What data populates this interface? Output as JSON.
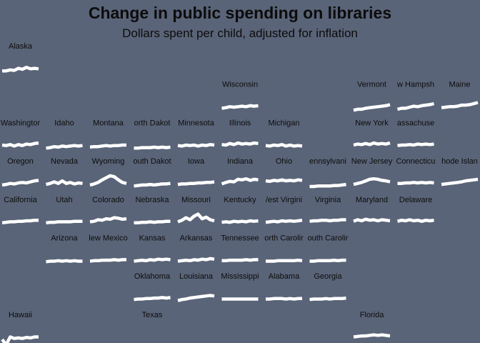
{
  "chart_data": {
    "type": "line",
    "layout": "small-multiples state grid map (sparkline per state)",
    "title": "Change in public spending on libraries",
    "subtitle": "Dollars spent per child, adjusted for inflation",
    "line_color": "#ffffff",
    "background_color": "#5a6478",
    "ylim": [
      0,
      1
    ],
    "states": [
      {
        "name": "Alaska",
        "label": "Alaska",
        "row": 0,
        "col": 0,
        "values": [
          0.3,
          0.3,
          0.34,
          0.32,
          0.4,
          0.36,
          0.44,
          0.38,
          0.4,
          0.38
        ]
      },
      {
        "name": "Wisconsin",
        "label": "Wisconsin",
        "row": 1,
        "col": 5,
        "values": [
          0.34,
          0.36,
          0.4,
          0.38,
          0.4,
          0.42,
          0.4,
          0.44,
          0.42,
          0.44
        ]
      },
      {
        "name": "Vermont",
        "label": "Vermont",
        "row": 1,
        "col": 8,
        "values": [
          0.26,
          0.3,
          0.3,
          0.34,
          0.36,
          0.38,
          0.4,
          0.42,
          0.44,
          0.48
        ]
      },
      {
        "name": "New Hampshire",
        "label": "w Hampsh",
        "row": 1,
        "col": 9,
        "values": [
          0.3,
          0.34,
          0.34,
          0.38,
          0.42,
          0.4,
          0.44,
          0.46,
          0.48,
          0.52
        ]
      },
      {
        "name": "Maine",
        "label": "Maine",
        "row": 1,
        "col": 10,
        "values": [
          0.36,
          0.38,
          0.4,
          0.4,
          0.42,
          0.46,
          0.46,
          0.48,
          0.52,
          0.56
        ]
      },
      {
        "name": "Washington",
        "label": "Washingtor",
        "row": 2,
        "col": 0,
        "values": [
          0.4,
          0.38,
          0.42,
          0.36,
          0.42,
          0.38,
          0.44,
          0.42,
          0.46,
          0.48
        ]
      },
      {
        "name": "Idaho",
        "label": "Idaho",
        "row": 2,
        "col": 1,
        "values": [
          0.28,
          0.3,
          0.34,
          0.32,
          0.36,
          0.34,
          0.36,
          0.38,
          0.36,
          0.38
        ]
      },
      {
        "name": "Montana",
        "label": "Montana",
        "row": 2,
        "col": 2,
        "values": [
          0.32,
          0.34,
          0.34,
          0.36,
          0.38,
          0.36,
          0.38,
          0.38,
          0.4,
          0.4
        ]
      },
      {
        "name": "North Dakota",
        "label": "orth Dakot",
        "row": 2,
        "col": 3,
        "values": [
          0.28,
          0.28,
          0.3,
          0.3,
          0.3,
          0.32,
          0.3,
          0.32,
          0.3,
          0.32
        ]
      },
      {
        "name": "Minnesota",
        "label": "Minnesota",
        "row": 2,
        "col": 4,
        "values": [
          0.38,
          0.36,
          0.4,
          0.38,
          0.4,
          0.36,
          0.4,
          0.38,
          0.42,
          0.4
        ]
      },
      {
        "name": "Illinois",
        "label": "Illinois",
        "row": 2,
        "col": 5,
        "values": [
          0.42,
          0.4,
          0.46,
          0.42,
          0.48,
          0.44,
          0.46,
          0.44,
          0.48,
          0.46
        ]
      },
      {
        "name": "Michigan",
        "label": "Michigan",
        "row": 2,
        "col": 6,
        "values": [
          0.38,
          0.36,
          0.4,
          0.38,
          0.42,
          0.36,
          0.4,
          0.36,
          0.38,
          0.36
        ]
      },
      {
        "name": "New York",
        "label": "New York",
        "row": 2,
        "col": 8,
        "values": [
          0.4,
          0.44,
          0.42,
          0.46,
          0.42,
          0.48,
          0.44,
          0.46,
          0.44,
          0.48
        ]
      },
      {
        "name": "Massachusetts",
        "label": "assachuse",
        "row": 2,
        "col": 9,
        "values": [
          0.38,
          0.4,
          0.4,
          0.42,
          0.4,
          0.44,
          0.42,
          0.44,
          0.42,
          0.44
        ]
      },
      {
        "name": "Oregon",
        "label": "Oregon",
        "row": 3,
        "col": 0,
        "values": [
          0.34,
          0.36,
          0.4,
          0.38,
          0.42,
          0.44,
          0.42,
          0.46,
          0.5,
          0.52
        ]
      },
      {
        "name": "Nevada",
        "label": "Nevada",
        "row": 3,
        "col": 1,
        "values": [
          0.36,
          0.4,
          0.46,
          0.4,
          0.5,
          0.4,
          0.44,
          0.38,
          0.42,
          0.4
        ]
      },
      {
        "name": "Wyoming",
        "label": "Wyoming",
        "row": 3,
        "col": 2,
        "values": [
          0.34,
          0.38,
          0.44,
          0.54,
          0.62,
          0.7,
          0.66,
          0.54,
          0.44,
          0.4
        ]
      },
      {
        "name": "South Dakota",
        "label": "outh Dakot",
        "row": 3,
        "col": 3,
        "values": [
          0.3,
          0.32,
          0.34,
          0.34,
          0.36,
          0.34,
          0.36,
          0.38,
          0.38,
          0.4
        ]
      },
      {
        "name": "Iowa",
        "label": "Iowa",
        "row": 3,
        "col": 4,
        "values": [
          0.36,
          0.38,
          0.38,
          0.4,
          0.4,
          0.42,
          0.42,
          0.44,
          0.44,
          0.46
        ]
      },
      {
        "name": "Indiana",
        "label": "Indiana",
        "row": 3,
        "col": 5,
        "values": [
          0.38,
          0.44,
          0.48,
          0.46,
          0.56,
          0.54,
          0.58,
          0.52,
          0.56,
          0.54
        ]
      },
      {
        "name": "Ohio",
        "label": "Ohio",
        "row": 3,
        "col": 6,
        "values": [
          0.5,
          0.48,
          0.52,
          0.5,
          0.54,
          0.5,
          0.52,
          0.5,
          0.54,
          0.52
        ]
      },
      {
        "name": "Pennsylvania",
        "label": "ennsylvani",
        "row": 3,
        "col": 7,
        "values": [
          0.28,
          0.28,
          0.3,
          0.3,
          0.3,
          0.3,
          0.32,
          0.32,
          0.34,
          0.36
        ]
      },
      {
        "name": "New Jersey",
        "label": "New Jersey",
        "row": 3,
        "col": 8,
        "values": [
          0.36,
          0.4,
          0.44,
          0.5,
          0.56,
          0.58,
          0.56,
          0.52,
          0.5,
          0.46
        ]
      },
      {
        "name": "Connecticut",
        "label": "Connecticu",
        "row": 3,
        "col": 9,
        "values": [
          0.4,
          0.4,
          0.42,
          0.42,
          0.44,
          0.42,
          0.44,
          0.42,
          0.44,
          0.42
        ]
      },
      {
        "name": "Rhode Island",
        "label": "hode Islan",
        "row": 3,
        "col": 10,
        "values": [
          0.36,
          0.38,
          0.4,
          0.42,
          0.44,
          0.46,
          0.5,
          0.52,
          0.54,
          0.56
        ]
      },
      {
        "name": "California",
        "label": "California",
        "row": 4,
        "col": 0,
        "values": [
          0.36,
          0.38,
          0.4,
          0.4,
          0.42,
          0.42,
          0.44,
          0.44,
          0.46,
          0.46
        ]
      },
      {
        "name": "Utah",
        "label": "Utah",
        "row": 4,
        "col": 1,
        "values": [
          0.36,
          0.38,
          0.38,
          0.4,
          0.4,
          0.4,
          0.4,
          0.42,
          0.42,
          0.42
        ]
      },
      {
        "name": "Colorado",
        "label": "Colorado",
        "row": 4,
        "col": 2,
        "values": [
          0.4,
          0.42,
          0.48,
          0.46,
          0.52,
          0.5,
          0.56,
          0.54,
          0.5,
          0.52
        ]
      },
      {
        "name": "Nebraska",
        "label": "Nebraska",
        "row": 4,
        "col": 3,
        "values": [
          0.36,
          0.36,
          0.38,
          0.38,
          0.4,
          0.38,
          0.4,
          0.4,
          0.42,
          0.42
        ]
      },
      {
        "name": "Missouri",
        "label": "Missouri",
        "row": 4,
        "col": 4,
        "values": [
          0.4,
          0.46,
          0.56,
          0.48,
          0.62,
          0.7,
          0.52,
          0.58,
          0.48,
          0.44
        ]
      },
      {
        "name": "Kentucky",
        "label": "Kentucky",
        "row": 4,
        "col": 5,
        "values": [
          0.38,
          0.4,
          0.38,
          0.42,
          0.4,
          0.42,
          0.4,
          0.44,
          0.42,
          0.44
        ]
      },
      {
        "name": "West Virginia",
        "label": "/est Virgini",
        "row": 4,
        "col": 6,
        "values": [
          0.38,
          0.4,
          0.42,
          0.4,
          0.44,
          0.42,
          0.44,
          0.42,
          0.44,
          0.46
        ]
      },
      {
        "name": "Virginia",
        "label": "Virginia",
        "row": 4,
        "col": 7,
        "values": [
          0.42,
          0.44,
          0.44,
          0.46,
          0.46,
          0.44,
          0.46,
          0.46,
          0.48,
          0.48
        ]
      },
      {
        "name": "Maryland",
        "label": "Maryland",
        "row": 4,
        "col": 8,
        "values": [
          0.42,
          0.48,
          0.44,
          0.5,
          0.46,
          0.48,
          0.44,
          0.48,
          0.46,
          0.44
        ]
      },
      {
        "name": "Delaware",
        "label": "Delaware",
        "row": 4,
        "col": 9,
        "values": [
          0.42,
          0.46,
          0.44,
          0.48,
          0.44,
          0.46,
          0.42,
          0.46,
          0.44,
          0.46
        ]
      },
      {
        "name": "Arizona",
        "label": "Arizona",
        "row": 5,
        "col": 1,
        "values": [
          0.34,
          0.36,
          0.36,
          0.38,
          0.36,
          0.38,
          0.36,
          0.38,
          0.36,
          0.36
        ]
      },
      {
        "name": "New Mexico",
        "label": "lew Mexico",
        "row": 5,
        "col": 2,
        "values": [
          0.36,
          0.38,
          0.38,
          0.4,
          0.4,
          0.4,
          0.42,
          0.4,
          0.42,
          0.42
        ]
      },
      {
        "name": "Kansas",
        "label": "Kansas",
        "row": 5,
        "col": 3,
        "values": [
          0.36,
          0.38,
          0.4,
          0.38,
          0.42,
          0.4,
          0.44,
          0.42,
          0.44,
          0.42
        ]
      },
      {
        "name": "Arkansas",
        "label": "Arkansas",
        "row": 5,
        "col": 4,
        "values": [
          0.36,
          0.38,
          0.4,
          0.38,
          0.42,
          0.4,
          0.44,
          0.42,
          0.46,
          0.44
        ]
      },
      {
        "name": "Tennessee",
        "label": "Tennessee",
        "row": 5,
        "col": 5,
        "values": [
          0.38,
          0.38,
          0.4,
          0.4,
          0.4,
          0.4,
          0.42,
          0.4,
          0.42,
          0.42
        ]
      },
      {
        "name": "North Carolina",
        "label": "orth Carolir",
        "row": 5,
        "col": 6,
        "values": [
          0.36,
          0.36,
          0.36,
          0.38,
          0.38,
          0.38,
          0.38,
          0.38,
          0.4,
          0.38
        ]
      },
      {
        "name": "South Carolina",
        "label": "outh Carolir",
        "row": 5,
        "col": 7,
        "values": [
          0.36,
          0.36,
          0.38,
          0.38,
          0.38,
          0.38,
          0.4,
          0.38,
          0.4,
          0.4
        ]
      },
      {
        "name": "Oklahoma",
        "label": "Oklahoma",
        "row": 6,
        "col": 3,
        "values": [
          0.36,
          0.38,
          0.38,
          0.4,
          0.4,
          0.42,
          0.42,
          0.44,
          0.42,
          0.44
        ]
      },
      {
        "name": "Louisiana",
        "label": "Louisiana",
        "row": 6,
        "col": 4,
        "values": [
          0.32,
          0.36,
          0.38,
          0.42,
          0.44,
          0.46,
          0.48,
          0.5,
          0.52,
          0.5
        ]
      },
      {
        "name": "Mississippi",
        "label": "Mississippi",
        "row": 6,
        "col": 5,
        "values": [
          0.38,
          0.38,
          0.38,
          0.38,
          0.38,
          0.38,
          0.38,
          0.38,
          0.38,
          0.38
        ]
      },
      {
        "name": "Alabama",
        "label": "Alabama",
        "row": 6,
        "col": 6,
        "values": [
          0.38,
          0.38,
          0.4,
          0.4,
          0.4,
          0.38,
          0.4,
          0.38,
          0.4,
          0.4
        ]
      },
      {
        "name": "Georgia",
        "label": "Georgia",
        "row": 6,
        "col": 7,
        "values": [
          0.36,
          0.38,
          0.38,
          0.38,
          0.4,
          0.38,
          0.4,
          0.4,
          0.4,
          0.42
        ]
      },
      {
        "name": "Hawaii",
        "label": "Hawaii",
        "row": 7,
        "col": 0,
        "values": [
          0.3,
          0.1,
          0.4,
          0.34,
          0.36,
          0.34,
          0.38,
          0.36,
          0.4,
          0.4
        ]
      },
      {
        "name": "Texas",
        "label": "Texas",
        "row": 7,
        "col": 3,
        "values": []
      },
      {
        "name": "Florida",
        "label": "Florida",
        "row": 7,
        "col": 8,
        "values": [
          0.4,
          0.42,
          0.44,
          0.44,
          0.46,
          0.48,
          0.46,
          0.48,
          0.46,
          0.44
        ]
      }
    ]
  }
}
